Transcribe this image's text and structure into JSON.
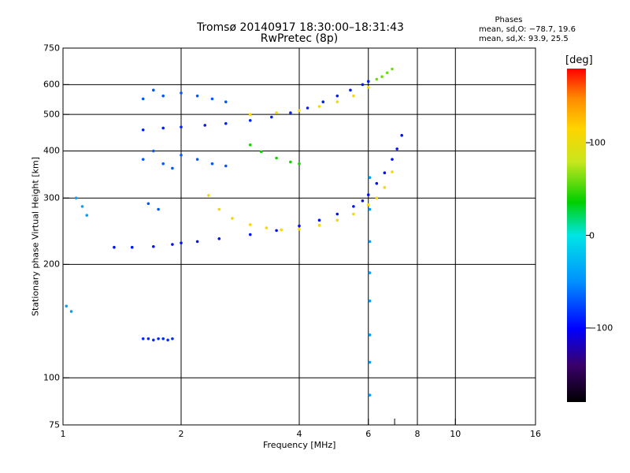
{
  "header": {
    "title": "Tromsø 20140917 18:30:00–18:31:43",
    "subtitle": "RwPretec (8p)",
    "phase_label": "Phases",
    "stat_o": "mean, sd,O: −78.7, 19.6",
    "stat_x": "mean, sd,X:  93.9, 25.5"
  },
  "colors": {
    "grid": "#000000",
    "palette": [
      "#000000",
      "#3a006a",
      "#0000ff",
      "#0090ff",
      "#00e5e5",
      "#00d000",
      "#c8e61e",
      "#ffd400",
      "#ff8c00",
      "#ff0000"
    ]
  },
  "chart_data": {
    "type": "scatter",
    "title": "Tromsø 20140917 18:30:00–18:31:43",
    "subtitle": "RwPretec (8p)",
    "xlabel": "Frequency [MHz]",
    "ylabel": "Stationary phase Virtual Height [km]",
    "x_scale": "log",
    "y_scale": "log",
    "xlim": [
      1,
      16
    ],
    "ylim": [
      75,
      750
    ],
    "x_ticks": [
      1,
      2,
      4,
      6,
      8,
      10,
      16
    ],
    "y_ticks": [
      75,
      100,
      200,
      300,
      400,
      500,
      600,
      750
    ],
    "x_minor_ticks": [
      7
    ],
    "x_gridlines": [
      2,
      4,
      6,
      8,
      10
    ],
    "y_gridlines": [
      100,
      200,
      300,
      400,
      500,
      600
    ],
    "grid": true,
    "colorbar": {
      "label": "[deg]",
      "range": [
        -180,
        180
      ],
      "ticks": [
        100,
        0,
        -100
      ],
      "ticks_text": [
        "100",
        "0",
        "−100"
      ]
    },
    "series": [
      {
        "trace": "F2 low trace (blue)",
        "phase": -95,
        "x": [
          1.35,
          1.5,
          1.7,
          1.9,
          2.0,
          2.2,
          2.5,
          3.0,
          3.5,
          4.0,
          4.5,
          5.0,
          5.5,
          5.8,
          6.0,
          6.3,
          6.6,
          6.9,
          7.1,
          7.3
        ],
        "y": [
          222,
          222,
          223,
          226,
          228,
          230,
          234,
          240,
          246,
          253,
          262,
          272,
          285,
          295,
          306,
          328,
          350,
          380,
          405,
          440
        ]
      },
      {
        "trace": "F2 second trace (orange)",
        "phase": 110,
        "x": [
          2.35,
          2.5,
          2.7,
          3.0,
          3.3,
          3.6,
          4.0,
          4.5,
          5.0,
          5.5,
          6.0,
          6.3,
          6.6,
          6.9
        ],
        "y": [
          305,
          280,
          265,
          255,
          250,
          247,
          248,
          254,
          262,
          272,
          288,
          300,
          320,
          352
        ]
      },
      {
        "trace": "F2 multiple (blue)",
        "phase": -90,
        "x": [
          1.6,
          1.8,
          2.0,
          2.3,
          2.6,
          3.0,
          3.4,
          3.8,
          4.2,
          4.6,
          5.0,
          5.4,
          5.8,
          6.0
        ],
        "y": [
          455,
          460,
          463,
          468,
          473,
          482,
          492,
          505,
          520,
          540,
          560,
          580,
          600,
          612
        ]
      },
      {
        "trace": "F2 multiple (orange)",
        "phase": 110,
        "x": [
          3.0,
          3.5,
          4.0,
          4.5,
          5.0,
          5.5,
          6.0
        ],
        "y": [
          500,
          505,
          512,
          525,
          540,
          560,
          590
        ]
      },
      {
        "trace": "F multiple (green)",
        "phase": 40,
        "x": [
          3.0,
          3.2,
          3.5,
          3.8,
          4.0
        ],
        "y": [
          415,
          398,
          383,
          374,
          370
        ]
      },
      {
        "trace": "upper band (green)",
        "phase": 60,
        "x": [
          6.3,
          6.5,
          6.7,
          6.9
        ],
        "y": [
          620,
          630,
          645,
          660
        ]
      },
      {
        "trace": "E / Es echoes (blue)",
        "phase": -85,
        "x": [
          1.6,
          1.65,
          1.7,
          1.75,
          1.8,
          1.85,
          1.9
        ],
        "y": [
          127,
          127,
          126,
          127,
          127,
          126,
          127
        ]
      },
      {
        "trace": "low-frequency echoes (cyan)",
        "phase": -40,
        "x": [
          1.02,
          1.05,
          1.08,
          1.12,
          1.15
        ],
        "y": [
          155,
          150,
          300,
          285,
          270
        ]
      },
      {
        "trace": "6 MHz vertical band (cyan)",
        "phase": -45,
        "x": [
          6.05,
          6.05,
          6.05,
          6.05,
          6.05,
          6.05,
          6.05,
          6.05
        ],
        "y": [
          90,
          110,
          130,
          160,
          190,
          230,
          280,
          340
        ]
      },
      {
        "trace": "scattered echoes",
        "phase": -70,
        "x": [
          1.6,
          1.7,
          1.8,
          2.0,
          2.2,
          2.4,
          2.6,
          1.6,
          1.7,
          1.8,
          1.9,
          2.0,
          2.2,
          2.4,
          2.6,
          1.65,
          1.75
        ],
        "y": [
          550,
          580,
          560,
          570,
          560,
          550,
          540,
          380,
          400,
          370,
          360,
          390,
          380,
          370,
          365,
          290,
          280
        ]
      }
    ]
  }
}
